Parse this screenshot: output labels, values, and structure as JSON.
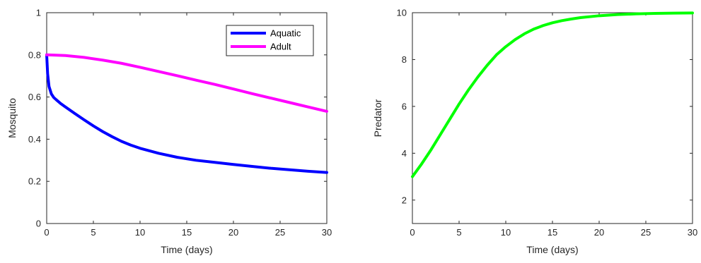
{
  "chart_data": [
    {
      "type": "line",
      "xlabel": "Time (days)",
      "ylabel": "Mosquito",
      "xlim": [
        0,
        30
      ],
      "ylim": [
        0,
        1
      ],
      "xticks": [
        0,
        5,
        10,
        15,
        20,
        25,
        30
      ],
      "yticks": [
        0,
        0.2,
        0.4,
        0.6,
        0.8,
        1
      ],
      "xtick_labels": [
        "0",
        "5",
        "10",
        "15",
        "20",
        "25",
        "30"
      ],
      "ytick_labels": [
        "0",
        "0.2",
        "0.4",
        "0.6",
        "0.8",
        "1"
      ],
      "grid": false,
      "legend": "top-right",
      "series": [
        {
          "name": "Aquatic",
          "color": "#0000ff",
          "x": [
            0,
            0.1,
            0.25,
            0.5,
            0.75,
            1,
            1.5,
            2,
            3,
            4,
            5,
            6,
            7,
            8,
            9,
            10,
            12,
            14,
            16,
            18,
            20,
            22,
            24,
            26,
            28,
            30
          ],
          "y": [
            0.8,
            0.71,
            0.65,
            0.615,
            0.598,
            0.588,
            0.569,
            0.553,
            0.522,
            0.492,
            0.463,
            0.436,
            0.412,
            0.39,
            0.372,
            0.357,
            0.333,
            0.314,
            0.3,
            0.29,
            0.28,
            0.271,
            0.262,
            0.255,
            0.248,
            0.242
          ]
        },
        {
          "name": "Adult",
          "color": "#ff00ff",
          "x": [
            0,
            2,
            4,
            6,
            8,
            10,
            12,
            14,
            16,
            18,
            20,
            22,
            24,
            26,
            28,
            30
          ],
          "y": [
            0.8,
            0.797,
            0.788,
            0.775,
            0.76,
            0.741,
            0.721,
            0.701,
            0.68,
            0.66,
            0.638,
            0.616,
            0.595,
            0.574,
            0.553,
            0.532
          ]
        }
      ]
    },
    {
      "type": "line",
      "xlabel": "Time (days)",
      "ylabel": "Predator",
      "xlim": [
        0,
        30
      ],
      "ylim": [
        1,
        10
      ],
      "xticks": [
        0,
        5,
        10,
        15,
        20,
        25,
        30
      ],
      "yticks": [
        2,
        4,
        6,
        8,
        10
      ],
      "xtick_labels": [
        "0",
        "5",
        "10",
        "15",
        "20",
        "25",
        "30"
      ],
      "ytick_labels": [
        "2",
        "4",
        "6",
        "8",
        "10"
      ],
      "grid": false,
      "series": [
        {
          "color": "#00ff00",
          "x": [
            0,
            1,
            2,
            3,
            4,
            5,
            6,
            7,
            8,
            9,
            10,
            11,
            12,
            13,
            14,
            15,
            16,
            17,
            18,
            20,
            22,
            24,
            26,
            28,
            30
          ],
          "y": [
            3.0,
            3.55,
            4.15,
            4.8,
            5.45,
            6.1,
            6.7,
            7.25,
            7.75,
            8.2,
            8.55,
            8.85,
            9.1,
            9.3,
            9.45,
            9.57,
            9.66,
            9.73,
            9.79,
            9.87,
            9.92,
            9.95,
            9.97,
            9.98,
            9.99
          ]
        }
      ]
    }
  ]
}
